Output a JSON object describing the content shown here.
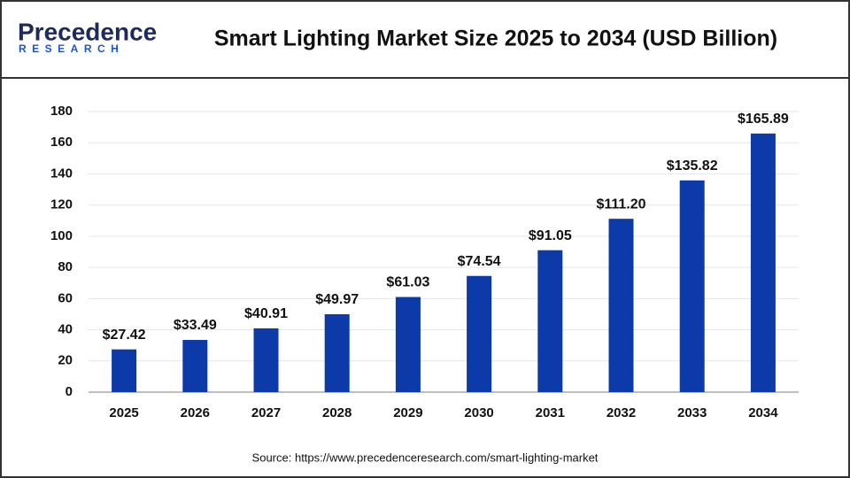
{
  "logo": {
    "name": "Precedence",
    "tagline": "RESEARCH"
  },
  "chart_data": {
    "type": "bar",
    "title": "Smart Lighting Market Size 2025 to 2034 (USD Billion)",
    "categories": [
      "2025",
      "2026",
      "2027",
      "2028",
      "2029",
      "2030",
      "2031",
      "2032",
      "2033",
      "2034"
    ],
    "values": [
      27.42,
      33.49,
      40.91,
      49.97,
      61.03,
      74.54,
      91.05,
      111.2,
      135.82,
      165.89
    ],
    "value_labels": [
      "$27.42",
      "$33.49",
      "$40.91",
      "$49.97",
      "$61.03",
      "$74.54",
      "$91.05",
      "$111.20",
      "$135.82",
      "$165.89"
    ],
    "color": "#0d3aa9",
    "ylim": [
      0,
      180
    ],
    "yticks": [
      0,
      20,
      40,
      60,
      80,
      100,
      120,
      140,
      160,
      180
    ],
    "grid": true,
    "source": "Source: https://www.precedenceresearch.com/smart-lighting-market"
  }
}
